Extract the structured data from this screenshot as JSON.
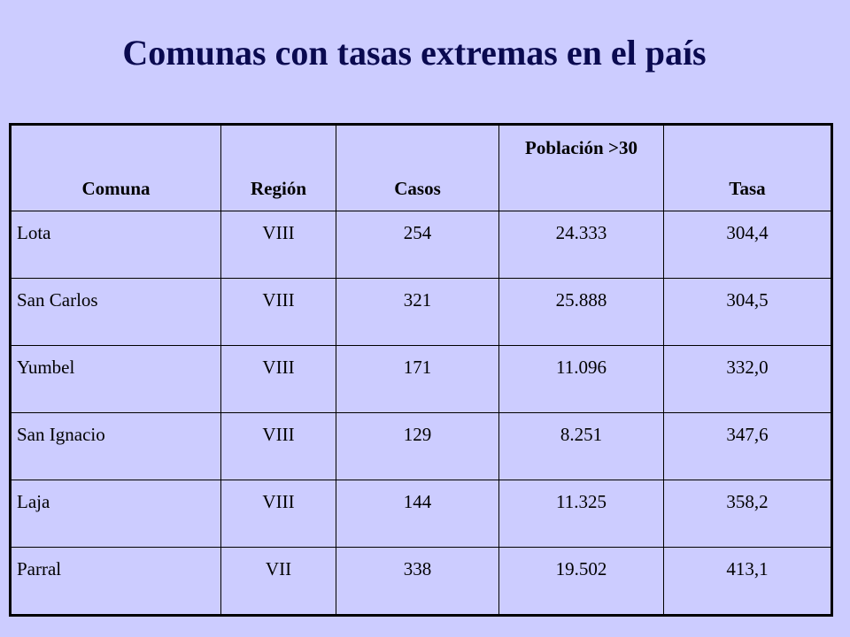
{
  "title": "Comunas con tasas extremas en el país",
  "table": {
    "headers": [
      "Comuna",
      "Región",
      "Casos",
      "Población >30",
      "Tasa"
    ],
    "rows": [
      [
        "Lota",
        "VIII",
        "254",
        "24.333",
        "304,4"
      ],
      [
        "San Carlos",
        "VIII",
        "321",
        "25.888",
        "304,5"
      ],
      [
        "Yumbel",
        "VIII",
        "171",
        "11.096",
        "332,0"
      ],
      [
        "San Ignacio",
        "VIII",
        "129",
        "8.251",
        "347,6"
      ],
      [
        "Laja",
        "VIII",
        "144",
        "11.325",
        "358,2"
      ],
      [
        "Parral",
        "VII",
        "338",
        "19.502",
        "413,1"
      ]
    ]
  },
  "colors": {
    "background": "#ccccff",
    "title": "#0a0a50",
    "border": "#000000"
  }
}
